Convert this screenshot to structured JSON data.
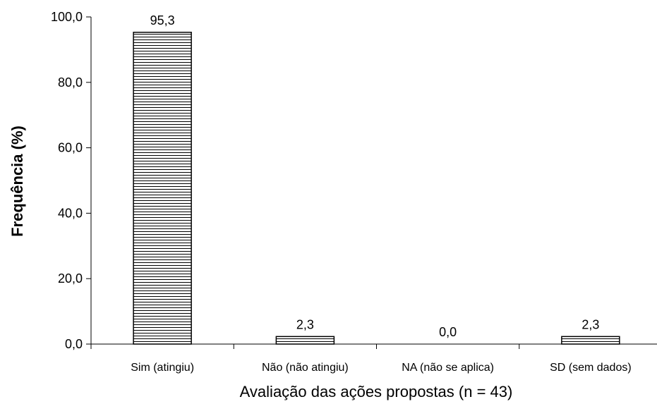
{
  "chart_data": {
    "type": "bar",
    "categories": [
      "Sim (atingiu)",
      "Não (não atingiu)",
      "NA (não se aplica)",
      "SD (sem dados)"
    ],
    "values": [
      95.3,
      2.3,
      0.0,
      2.3
    ],
    "value_labels": [
      "95,3",
      "2,3",
      "0,0",
      "2,3"
    ],
    "xlabel": "Avaliação das ações propostas (n = 43)",
    "ylabel": "Frequência (%)",
    "ylim": [
      0,
      100
    ],
    "yticks": [
      0,
      20,
      40,
      60,
      80,
      100
    ],
    "ytick_labels": [
      "0,0",
      "20,0",
      "40,0",
      "60,0",
      "80,0",
      "100,0"
    ],
    "grid": false,
    "bar_fill": "horizontal-stripes",
    "colors": {
      "bar_stroke": "#000000",
      "bar_fill": "#ffffff",
      "stripe": "#000000"
    }
  }
}
